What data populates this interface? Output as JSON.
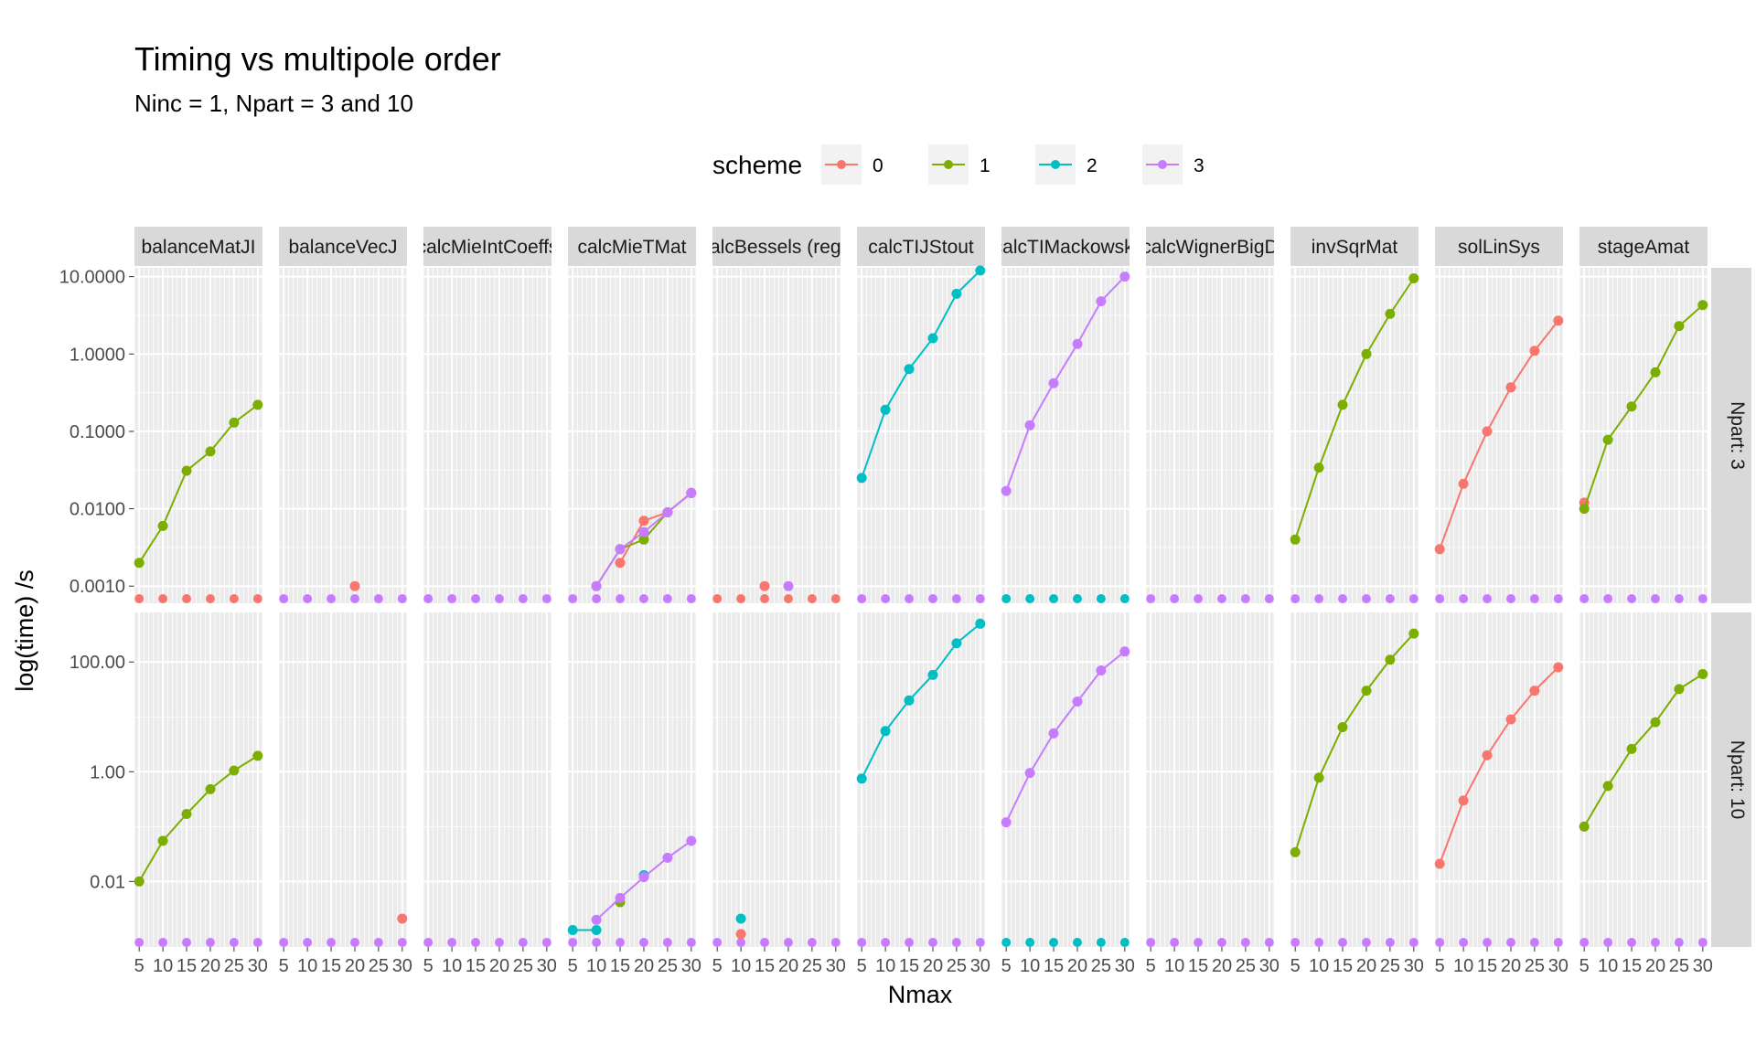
{
  "chart_data": {
    "type": "line",
    "title": "Timing vs multipole order",
    "subtitle": "Ninc = 1, Npart = 3 and 10",
    "xlabel": "Nmax",
    "ylabel": "log(time) /s",
    "x": [
      5,
      10,
      15,
      20,
      25,
      30
    ],
    "x_tick_labels": [
      "5",
      "10",
      "15",
      "20",
      "25",
      "30"
    ],
    "xlim": [
      4,
      31
    ],
    "y_scale": "log10",
    "grid": true,
    "legend": {
      "title": "scheme",
      "placement": "top",
      "entries": [
        {
          "label": "0",
          "color": "#F8766D"
        },
        {
          "label": "1",
          "color": "#7CAE00"
        },
        {
          "label": "2",
          "color": "#00BFC4"
        },
        {
          "label": "3",
          "color": "#C77CFF"
        }
      ]
    },
    "facets_columns": [
      "balanceMatJI",
      "balanceVecJ",
      "calcMieIntCoeffs",
      "calcMieTMat",
      "calcBessels (reg.)",
      "calcTIJStout",
      "calcTIMackowski",
      "calcWignerBigD",
      "invSqrMat",
      "solLinSys",
      "stageAmat"
    ],
    "facets_rows": [
      {
        "label": "Npart: 3",
        "ylim": [
          0.0006,
          13
        ],
        "y_ticks": [
          0.001,
          0.01,
          0.1,
          1,
          10
        ],
        "y_tick_labels": [
          "0.0010",
          "0.0100",
          "0.1000",
          "1.0000",
          "10.0000"
        ],
        "panels": [
          {
            "series": [
              {
                "scheme": "1",
                "values": [
                  0.002,
                  0.006,
                  0.031,
                  0.055,
                  0.13,
                  0.22
                ]
              }
            ]
          },
          {
            "series": [
              {
                "scheme": "0",
                "values": [
                  null,
                  null,
                  null,
                  0.001,
                  null,
                  null
                ]
              }
            ]
          },
          {
            "series": []
          },
          {
            "series": [
              {
                "scheme": "0",
                "values": [
                  null,
                  null,
                  0.002,
                  0.007,
                  0.009,
                  0.016
                ]
              },
              {
                "scheme": "1",
                "values": [
                  null,
                  0.001,
                  0.003,
                  0.004,
                  0.009,
                  0.016
                ]
              },
              {
                "scheme": "3",
                "values": [
                  null,
                  0.001,
                  0.003,
                  0.005,
                  0.009,
                  0.016
                ]
              }
            ]
          },
          {
            "series": [
              {
                "scheme": "0",
                "values": [
                  null,
                  null,
                  0.001,
                  null,
                  null,
                  null
                ]
              },
              {
                "scheme": "3",
                "values": [
                  null,
                  null,
                  null,
                  0.001,
                  null,
                  null
                ]
              }
            ]
          },
          {
            "series": [
              {
                "scheme": "2",
                "values": [
                  0.025,
                  0.19,
                  0.64,
                  1.6,
                  6,
                  12
                ]
              }
            ]
          },
          {
            "series": [
              {
                "scheme": "3",
                "values": [
                  0.017,
                  0.12,
                  0.42,
                  1.35,
                  4.8,
                  10
                ]
              }
            ]
          },
          {
            "series": []
          },
          {
            "series": [
              {
                "scheme": "1",
                "values": [
                  0.004,
                  0.034,
                  0.22,
                  1,
                  3.3,
                  9.5
                ]
              }
            ]
          },
          {
            "series": [
              {
                "scheme": "0",
                "values": [
                  0.003,
                  0.021,
                  0.1,
                  0.37,
                  1.1,
                  2.7
                ]
              }
            ]
          },
          {
            "series": [
              {
                "scheme": "0",
                "values": [
                  0.012,
                  null,
                  null,
                  null,
                  null,
                  null
                ]
              },
              {
                "scheme": "1",
                "values": [
                  0.01,
                  0.078,
                  0.21,
                  0.58,
                  2.3,
                  4.3
                ]
              }
            ]
          }
        ]
      },
      {
        "label": "Npart: 10",
        "ylim": [
          0.00064,
          800
        ],
        "y_ticks": [
          0.01,
          1,
          100
        ],
        "y_tick_labels": [
          "0.01",
          "1.00",
          "100.00"
        ],
        "panels": [
          {
            "series": [
              {
                "scheme": "1",
                "values": [
                  0.01,
                  0.055,
                  0.17,
                  0.48,
                  1.05,
                  1.95
                ]
              }
            ]
          },
          {
            "series": [
              {
                "scheme": "0",
                "values": [
                  null,
                  null,
                  null,
                  null,
                  null,
                  0.0021
                ]
              }
            ]
          },
          {
            "series": []
          },
          {
            "series": [
              {
                "scheme": "2",
                "values": [
                  0.0013,
                  0.0013,
                  null,
                  0.013,
                  null,
                  null
                ]
              },
              {
                "scheme": "1",
                "values": [
                  null,
                  null,
                  0.0042,
                  null,
                  null,
                  null
                ]
              },
              {
                "scheme": "3",
                "values": [
                  null,
                  0.002,
                  0.005,
                  0.012,
                  0.027,
                  0.055
                ]
              }
            ]
          },
          {
            "series": [
              {
                "scheme": "2",
                "values": [
                  null,
                  0.0021,
                  null,
                  null,
                  null,
                  null
                ]
              },
              {
                "scheme": "0",
                "values": [
                  null,
                  0.0011,
                  null,
                  null,
                  null,
                  null
                ]
              }
            ]
          },
          {
            "series": [
              {
                "scheme": "2",
                "values": [
                  0.75,
                  5.5,
                  20,
                  58,
                  220,
                  500
                ]
              }
            ]
          },
          {
            "series": [
              {
                "scheme": "3",
                "values": [
                  0.12,
                  0.95,
                  5,
                  19,
                  70,
                  155
                ]
              }
            ]
          },
          {
            "series": []
          },
          {
            "series": [
              {
                "scheme": "1",
                "values": [
                  0.034,
                  0.78,
                  6.5,
                  30,
                  110,
                  330
                ]
              }
            ]
          },
          {
            "series": [
              {
                "scheme": "0",
                "values": [
                  0.021,
                  0.3,
                  2,
                  9,
                  30,
                  80
                ]
              }
            ]
          },
          {
            "series": [
              {
                "scheme": "1",
                "values": [
                  0.1,
                  0.55,
                  2.6,
                  8,
                  32,
                  60
                ]
              }
            ]
          }
        ]
      }
    ],
    "zero_markers": [
      [
        "0",
        "3",
        "3",
        "3",
        "0",
        "3",
        "2",
        "3",
        "3",
        "3",
        "3"
      ],
      [
        "3",
        "3",
        "3",
        "3",
        "3",
        "3",
        "2",
        "3",
        "3",
        "3",
        "3"
      ]
    ]
  }
}
